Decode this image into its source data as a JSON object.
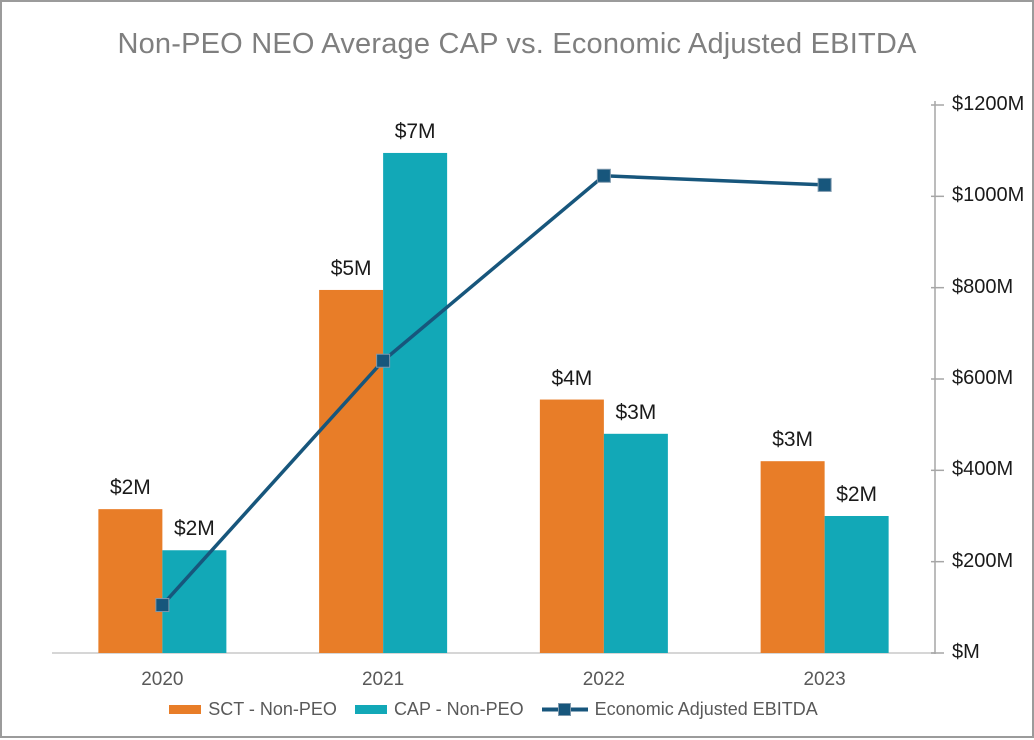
{
  "frame": {
    "border_color": "#9b9b9b",
    "background": "#ffffff"
  },
  "chart_data": {
    "type": "bar",
    "subtype": "clustered-bar-with-line-combo",
    "title": "Non-PEO NEO Average CAP vs. Economic Adjusted EBITDA",
    "categories": [
      "2020",
      "2021",
      "2022",
      "2023"
    ],
    "series": [
      {
        "name": "SCT - Non-PEO",
        "type": "bar",
        "color": "#e87d28",
        "data_labels": [
          "$2M",
          "$5M",
          "$4M",
          "$3M"
        ],
        "values_est_M": [
          2.1,
          5.3,
          3.7,
          2.8
        ],
        "axis": "hidden (est. range 0-8M)"
      },
      {
        "name": "CAP - Non-PEO",
        "type": "bar",
        "color": "#12a8b7",
        "data_labels": [
          "$2M",
          "$7M",
          "$3M",
          "$2M"
        ],
        "values_est_M": [
          1.5,
          7.3,
          3.2,
          2.0
        ],
        "axis": "hidden (est. range 0-8M)"
      },
      {
        "name": "Economic Adjusted EBITDA",
        "type": "line",
        "color": "#17567c",
        "marker": "square",
        "values_est_M": [
          105,
          640,
          1045,
          1025
        ],
        "axis": "right"
      }
    ],
    "y2_axis": {
      "side": "right",
      "ticks": [
        "$1200M",
        "$1000M",
        "$800M",
        "$600M",
        "$400M",
        "$200M",
        "$M"
      ],
      "range_M": [
        0,
        1200
      ],
      "grid": false
    },
    "legend_position": "bottom",
    "xlabel": "",
    "ylabel": ""
  },
  "styles": {
    "title_color": "#7f7f7f",
    "data_label_color": "#1a1a1a",
    "tick_label_color": "#1a1a1a",
    "category_label_color": "#595959",
    "legend_text_color": "#595959",
    "axis_line_color": "#a6a6a6",
    "baseline_color": "#d6d6d6",
    "marker_outline_color": "#7e99ad"
  }
}
